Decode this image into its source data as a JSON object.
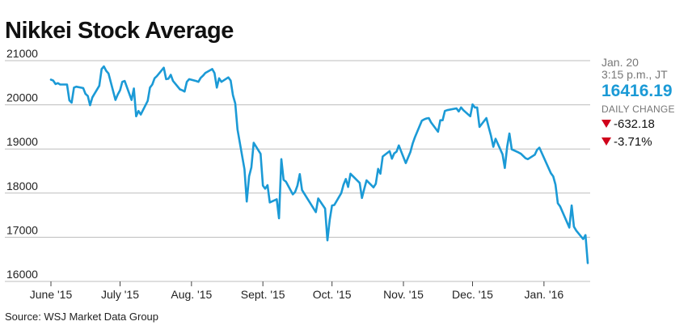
{
  "title": "Nikkei Stock Average",
  "source": "Source: WSJ Market Data Group",
  "sidebar": {
    "date": "Jan. 20",
    "time": "3:15 p.m., JT",
    "price": "16416.19",
    "daily_change_label": "DAILY CHANGE",
    "change_points": "-632.18",
    "change_percent": "-3.71%",
    "down_color": "#d0021b",
    "price_color": "#1b9ad6"
  },
  "chart_data": {
    "type": "line",
    "title": "Nikkei Stock Average",
    "xlabel": "",
    "ylabel": "",
    "ylim": [
      16000,
      21000
    ],
    "xlim": [
      "2015-06-01",
      "2016-01-20"
    ],
    "grid": true,
    "yticks": [
      16000,
      17000,
      18000,
      19000,
      20000,
      21000
    ],
    "xticks": [
      {
        "date": "2015-06-01",
        "label": "June '15"
      },
      {
        "date": "2015-07-01",
        "label": "July '15"
      },
      {
        "date": "2015-08-01",
        "label": "Aug. '15"
      },
      {
        "date": "2015-09-01",
        "label": "Sept. '15"
      },
      {
        "date": "2015-10-01",
        "label": "Oct. '15"
      },
      {
        "date": "2015-11-01",
        "label": "Nov. '15"
      },
      {
        "date": "2015-12-01",
        "label": "Dec. '15"
      },
      {
        "date": "2016-01-01",
        "label": "Jan. '16"
      }
    ],
    "series": [
      {
        "color": "#1b9ad6",
        "points": [
          [
            "2015-06-01",
            20570
          ],
          [
            "2015-06-02",
            20550
          ],
          [
            "2015-06-03",
            20470
          ],
          [
            "2015-06-04",
            20490
          ],
          [
            "2015-06-05",
            20460
          ],
          [
            "2015-06-08",
            20460
          ],
          [
            "2015-06-09",
            20100
          ],
          [
            "2015-06-10",
            20050
          ],
          [
            "2015-06-11",
            20390
          ],
          [
            "2015-06-12",
            20410
          ],
          [
            "2015-06-15",
            20380
          ],
          [
            "2015-06-16",
            20250
          ],
          [
            "2015-06-17",
            20200
          ],
          [
            "2015-06-18",
            19990
          ],
          [
            "2015-06-19",
            20170
          ],
          [
            "2015-06-22",
            20430
          ],
          [
            "2015-06-23",
            20810
          ],
          [
            "2015-06-24",
            20870
          ],
          [
            "2015-06-25",
            20770
          ],
          [
            "2015-06-26",
            20710
          ],
          [
            "2015-06-29",
            20110
          ],
          [
            "2015-06-30",
            20230
          ],
          [
            "2015-07-01",
            20330
          ],
          [
            "2015-07-02",
            20520
          ],
          [
            "2015-07-03",
            20540
          ],
          [
            "2015-07-06",
            20110
          ],
          [
            "2015-07-07",
            20370
          ],
          [
            "2015-07-08",
            19740
          ],
          [
            "2015-07-09",
            19860
          ],
          [
            "2015-07-10",
            19780
          ],
          [
            "2015-07-13",
            20090
          ],
          [
            "2015-07-14",
            20390
          ],
          [
            "2015-07-15",
            20460
          ],
          [
            "2015-07-16",
            20600
          ],
          [
            "2015-07-17",
            20650
          ],
          [
            "2015-07-20",
            20840
          ],
          [
            "2015-07-21",
            20580
          ],
          [
            "2015-07-22",
            20590
          ],
          [
            "2015-07-23",
            20680
          ],
          [
            "2015-07-24",
            20540
          ],
          [
            "2015-07-27",
            20350
          ],
          [
            "2015-07-28",
            20330
          ],
          [
            "2015-07-29",
            20300
          ],
          [
            "2015-07-30",
            20520
          ],
          [
            "2015-07-31",
            20580
          ],
          [
            "2015-08-03",
            20540
          ],
          [
            "2015-08-04",
            20520
          ],
          [
            "2015-08-05",
            20610
          ],
          [
            "2015-08-06",
            20660
          ],
          [
            "2015-08-07",
            20720
          ],
          [
            "2015-08-10",
            20810
          ],
          [
            "2015-08-11",
            20720
          ],
          [
            "2015-08-12",
            20390
          ],
          [
            "2015-08-13",
            20600
          ],
          [
            "2015-08-14",
            20520
          ],
          [
            "2015-08-17",
            20620
          ],
          [
            "2015-08-18",
            20550
          ],
          [
            "2015-08-19",
            20220
          ],
          [
            "2015-08-20",
            20030
          ],
          [
            "2015-08-21",
            19440
          ],
          [
            "2015-08-24",
            18540
          ],
          [
            "2015-08-25",
            17810
          ],
          [
            "2015-08-26",
            18380
          ],
          [
            "2015-08-27",
            18580
          ],
          [
            "2015-08-28",
            19140
          ],
          [
            "2015-08-31",
            18890
          ],
          [
            "2015-09-01",
            18170
          ],
          [
            "2015-09-02",
            18100
          ],
          [
            "2015-09-03",
            18180
          ],
          [
            "2015-09-04",
            17790
          ],
          [
            "2015-09-07",
            17860
          ],
          [
            "2015-09-08",
            17430
          ],
          [
            "2015-09-09",
            18770
          ],
          [
            "2015-09-10",
            18300
          ],
          [
            "2015-09-11",
            18260
          ],
          [
            "2015-09-14",
            17970
          ],
          [
            "2015-09-15",
            18030
          ],
          [
            "2015-09-16",
            18170
          ],
          [
            "2015-09-17",
            18430
          ],
          [
            "2015-09-18",
            18070
          ],
          [
            "2015-09-24",
            17570
          ],
          [
            "2015-09-25",
            17880
          ],
          [
            "2015-09-28",
            17650
          ],
          [
            "2015-09-29",
            16930
          ],
          [
            "2015-09-30",
            17390
          ],
          [
            "2015-10-01",
            17720
          ],
          [
            "2015-10-02",
            17730
          ],
          [
            "2015-10-05",
            18000
          ],
          [
            "2015-10-06",
            18190
          ],
          [
            "2015-10-07",
            18320
          ],
          [
            "2015-10-08",
            18140
          ],
          [
            "2015-10-09",
            18440
          ],
          [
            "2015-10-13",
            18230
          ],
          [
            "2015-10-14",
            17890
          ],
          [
            "2015-10-15",
            18100
          ],
          [
            "2015-10-16",
            18290
          ],
          [
            "2015-10-19",
            18130
          ],
          [
            "2015-10-20",
            18210
          ],
          [
            "2015-10-21",
            18550
          ],
          [
            "2015-10-22",
            18440
          ],
          [
            "2015-10-23",
            18830
          ],
          [
            "2015-10-26",
            18950
          ],
          [
            "2015-10-27",
            18780
          ],
          [
            "2015-10-28",
            18900
          ],
          [
            "2015-10-29",
            18940
          ],
          [
            "2015-10-30",
            19080
          ],
          [
            "2015-11-02",
            18680
          ],
          [
            "2015-11-04",
            18930
          ],
          [
            "2015-11-05",
            19120
          ],
          [
            "2015-11-06",
            19270
          ],
          [
            "2015-11-09",
            19640
          ],
          [
            "2015-11-10",
            19670
          ],
          [
            "2015-11-11",
            19690
          ],
          [
            "2015-11-12",
            19700
          ],
          [
            "2015-11-13",
            19600
          ],
          [
            "2015-11-16",
            19390
          ],
          [
            "2015-11-17",
            19650
          ],
          [
            "2015-11-18",
            19650
          ],
          [
            "2015-11-19",
            19860
          ],
          [
            "2015-11-20",
            19880
          ],
          [
            "2015-11-24",
            19920
          ],
          [
            "2015-11-25",
            19850
          ],
          [
            "2015-11-26",
            19940
          ],
          [
            "2015-11-27",
            19880
          ],
          [
            "2015-11-30",
            19740
          ],
          [
            "2015-12-01",
            20010
          ],
          [
            "2015-12-02",
            19940
          ],
          [
            "2015-12-03",
            19940
          ],
          [
            "2015-12-04",
            19500
          ],
          [
            "2015-12-07",
            19700
          ],
          [
            "2015-12-08",
            19490
          ],
          [
            "2015-12-09",
            19300
          ],
          [
            "2015-12-10",
            19050
          ],
          [
            "2015-12-11",
            19230
          ],
          [
            "2015-12-14",
            18880
          ],
          [
            "2015-12-15",
            18570
          ],
          [
            "2015-12-16",
            19050
          ],
          [
            "2015-12-17",
            19350
          ],
          [
            "2015-12-18",
            18990
          ],
          [
            "2015-12-21",
            18920
          ],
          [
            "2015-12-22",
            18890
          ],
          [
            "2015-12-24",
            18790
          ],
          [
            "2015-12-25",
            18770
          ],
          [
            "2015-12-28",
            18870
          ],
          [
            "2015-12-29",
            18980
          ],
          [
            "2015-12-30",
            19030
          ],
          [
            "2016-01-04",
            18450
          ],
          [
            "2016-01-05",
            18380
          ],
          [
            "2016-01-06",
            18190
          ],
          [
            "2016-01-07",
            17770
          ],
          [
            "2016-01-08",
            17700
          ],
          [
            "2016-01-12",
            17220
          ],
          [
            "2016-01-13",
            17720
          ],
          [
            "2016-01-14",
            17240
          ],
          [
            "2016-01-15",
            17150
          ],
          [
            "2016-01-18",
            16960
          ],
          [
            "2016-01-19",
            17050
          ],
          [
            "2016-01-20",
            16416
          ]
        ]
      }
    ]
  }
}
